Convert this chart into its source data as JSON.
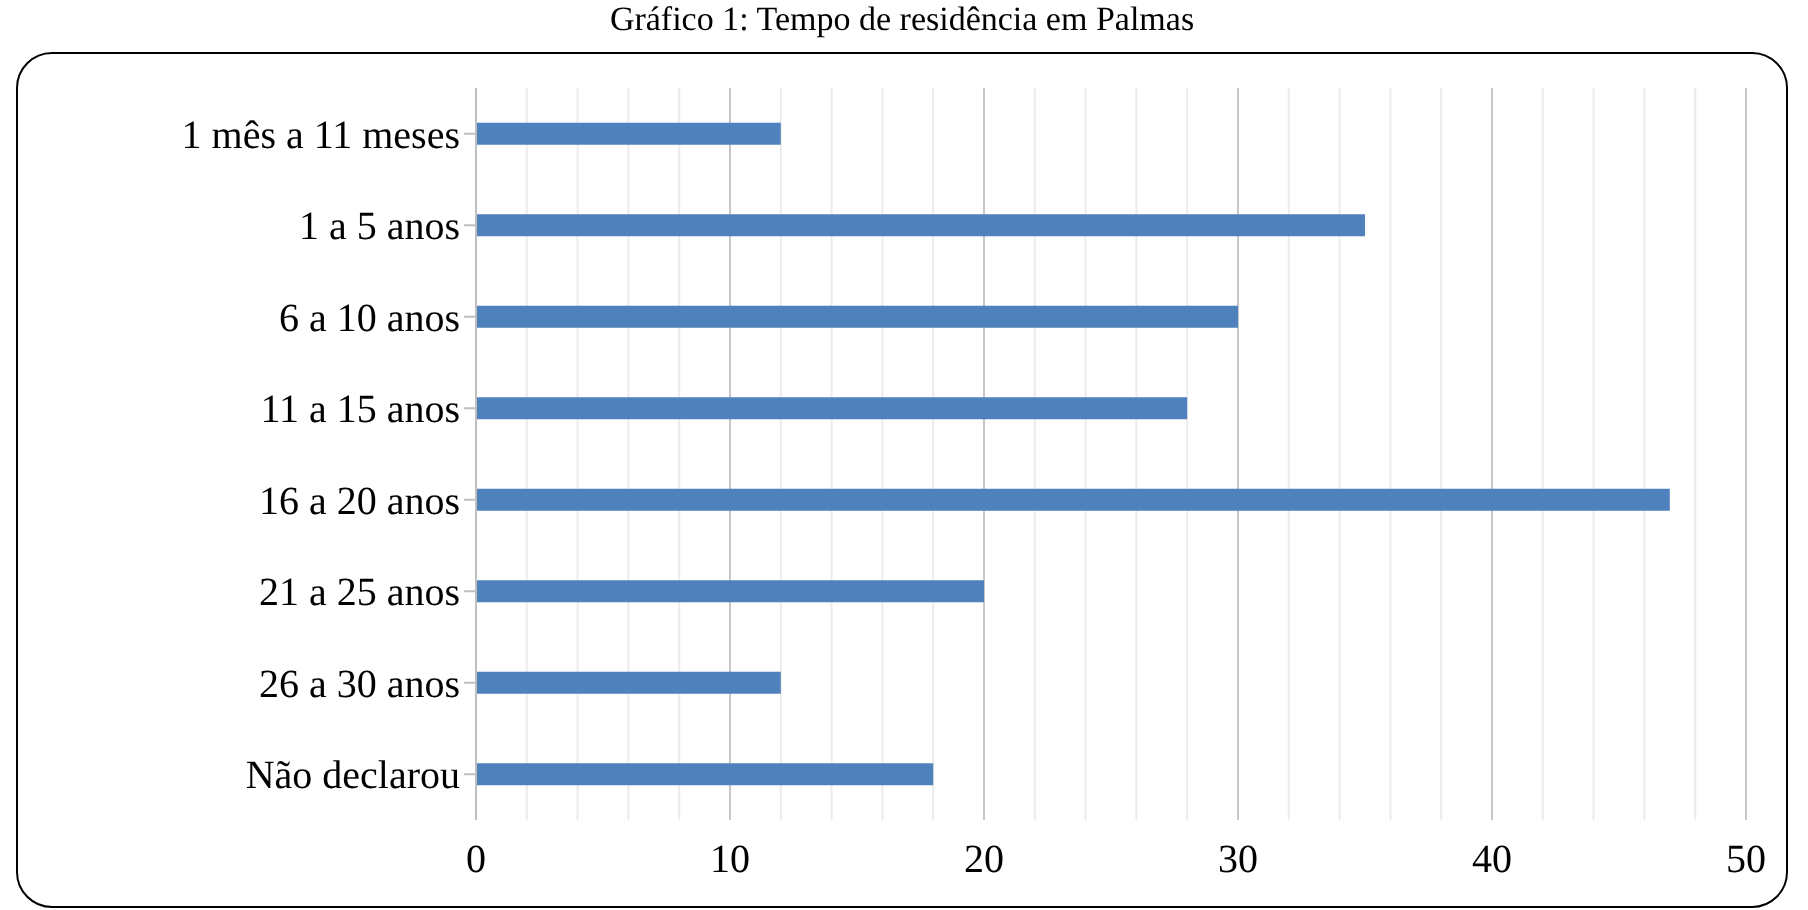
{
  "chart_data": {
    "type": "bar",
    "orientation": "horizontal",
    "title": "Gráfico 1: Tempo de residência em Palmas",
    "categories": [
      "1 mês a 11 meses",
      "1 a 5 anos",
      "6 a 10 anos",
      "11 a 15 anos",
      "16 a 20 anos",
      "21 a 25 anos",
      "26 a 30 anos",
      "Não declarou"
    ],
    "values": [
      12,
      35,
      30,
      28,
      47,
      20,
      12,
      18
    ],
    "color": "#4f81bd",
    "xlim": [
      0,
      50
    ],
    "xticks": [
      0,
      {
        "value": 2,
        "label": null
      },
      {
        "value": 4,
        "label": null
      },
      {
        "value": 6,
        "label": null
      },
      {
        "value": 8,
        "label": null
      },
      10,
      {
        "value": 12,
        "label": null
      },
      {
        "value": 14,
        "label": null
      },
      {
        "value": 16,
        "label": null
      },
      {
        "value": 18,
        "label": null
      },
      20,
      {
        "value": 22,
        "label": null
      },
      {
        "value": 24,
        "label": null
      },
      {
        "value": 26,
        "label": null
      },
      {
        "value": 28,
        "label": null
      },
      30,
      {
        "value": 32,
        "label": null
      },
      {
        "value": 34,
        "label": null
      },
      {
        "value": 36,
        "label": null
      },
      {
        "value": 38,
        "label": null
      },
      40,
      {
        "value": 42,
        "label": null
      },
      {
        "value": 44,
        "label": null
      },
      {
        "value": 46,
        "label": null
      },
      {
        "value": 48,
        "label": null
      },
      50
    ],
    "grid": "x",
    "legend": false
  }
}
